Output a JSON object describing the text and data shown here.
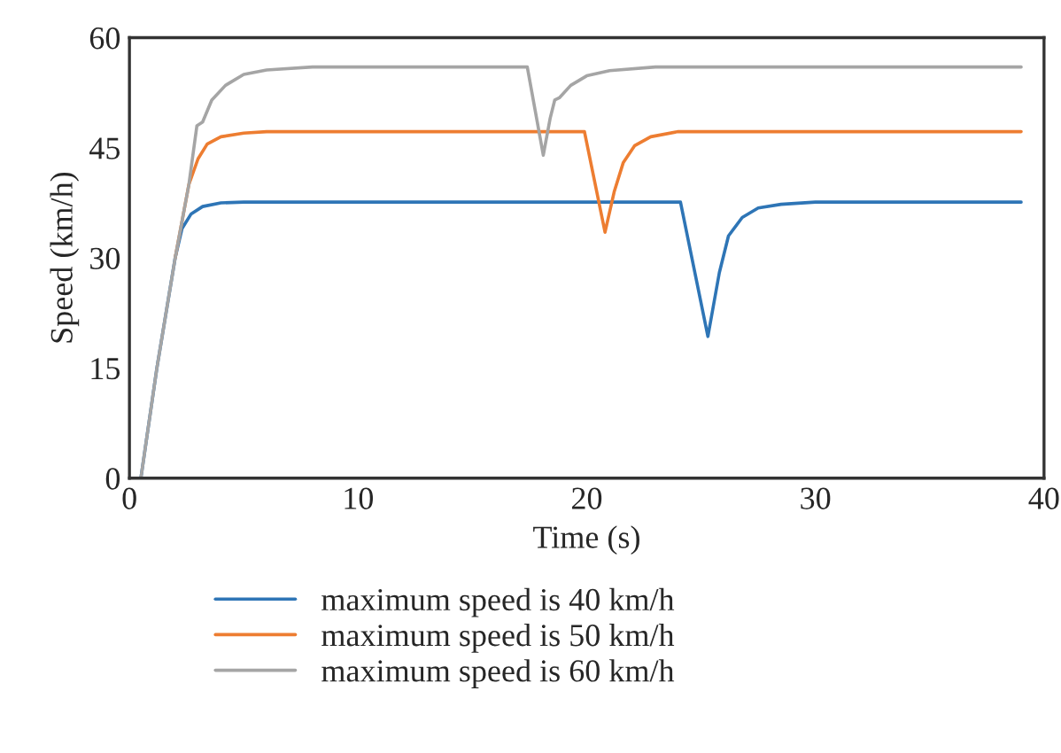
{
  "chart_data": {
    "type": "line",
    "xlabel": "Time (s)",
    "ylabel": "Speed (km/h)",
    "xlim": [
      0,
      40
    ],
    "xticks": [
      0,
      10,
      20,
      30,
      40
    ],
    "ylim": [
      0,
      60
    ],
    "yticks": [
      0,
      15,
      30,
      45,
      60
    ],
    "grid": false,
    "legend": "bottom",
    "line_style": "solid",
    "marker": "none",
    "series": [
      {
        "name": "maximum speed is 40 km/h",
        "color": "#2e75b6",
        "x": [
          0.5,
          1.2,
          2.0,
          2.3,
          2.7,
          3.2,
          4.0,
          5.0,
          24.1,
          25.3,
          25.8,
          26.2,
          26.8,
          27.5,
          28.5,
          30.0,
          39.0
        ],
        "values": [
          0,
          15,
          30,
          34,
          36,
          37,
          37.5,
          37.6,
          37.6,
          19.3,
          28,
          33,
          35.5,
          36.8,
          37.3,
          37.6,
          37.6
        ]
      },
      {
        "name": "maximum speed is 50 km/h",
        "color": "#ed7d31",
        "x": [
          2.0,
          2.6,
          3.0,
          3.4,
          4.0,
          5.0,
          6.0,
          19.9,
          20.8,
          21.2,
          21.6,
          22.1,
          22.8,
          24.0,
          39.0
        ],
        "values": [
          30,
          40,
          43.5,
          45.5,
          46.5,
          47,
          47.2,
          47.2,
          33.5,
          39,
          43,
          45.3,
          46.5,
          47.2,
          47.2
        ]
      },
      {
        "name": "maximum speed is 60 km/h",
        "color": "#a5a5a5",
        "x": [
          0.5,
          1.2,
          2.0,
          2.6,
          2.95,
          3.2,
          3.6,
          4.2,
          5.0,
          6.0,
          8.0,
          17.4,
          18.1,
          18.4,
          18.6,
          18.8,
          19.3,
          20.0,
          21.0,
          23.0,
          39.0
        ],
        "values": [
          0,
          15,
          30,
          40,
          48,
          48.5,
          51.5,
          53.5,
          55,
          55.6,
          56,
          56,
          44,
          49,
          51.5,
          51.8,
          53.5,
          54.8,
          55.5,
          56,
          56
        ]
      }
    ]
  }
}
